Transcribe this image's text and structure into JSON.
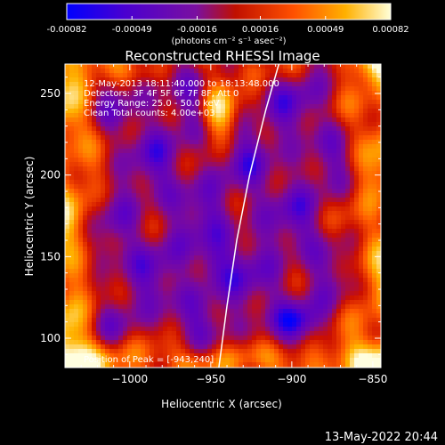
{
  "colorbar": {
    "tick_labels": [
      "-0.00082",
      "-0.00049",
      "-0.00016",
      "0.00016",
      "0.00049",
      "0.00082"
    ],
    "tick_values": [
      -0.00082,
      -0.00049,
      -0.00016,
      0.00016,
      0.00049,
      0.00082
    ],
    "range": [
      -0.00082,
      0.00082
    ],
    "unit_label": "(photons cm⁻² s⁻¹ asec⁻²)",
    "colors": [
      "#0000ff",
      "#5a00c8",
      "#7a0aa0",
      "#cc1000",
      "#ff5a00",
      "#ffb400",
      "#ffffe0"
    ]
  },
  "chart_data": {
    "type": "heatmap",
    "title": "Reconstructed RHESSI Image",
    "xlabel": "Heliocentric X (arcsec)",
    "ylabel": "Heliocentric Y (arcsec)",
    "xlim": [
      -1040,
      -845
    ],
    "ylim": [
      82,
      268
    ],
    "x_ticks": [
      -1000,
      -950,
      -900,
      -850
    ],
    "y_ticks": [
      100,
      150,
      200,
      250
    ],
    "x_tick_labels": [
      "−1000",
      "−950",
      "−900",
      "−850"
    ],
    "y_tick_labels": [
      "100",
      "150",
      "200",
      "250"
    ],
    "annotations": [
      "12-May-2013 18:11:40.000 to 18:13:48.000",
      "Detectors: 3F 4F 5F 6F 7F 8F, Att 0",
      "Energy Range: 25.0 - 50.0 keV",
      "Clean    Total counts: 4.00e+03"
    ],
    "peak_label": "Position of Peak = [-943,240]",
    "peak": [
      -943,
      240
    ],
    "limb_curve": [
      [
        -945,
        82
      ],
      [
        -940,
        120
      ],
      [
        -934,
        160
      ],
      [
        -926,
        200
      ],
      [
        -916,
        240
      ],
      [
        -908,
        268
      ]
    ]
  },
  "footer": {
    "timestamp": "13-May-2022 20:44"
  }
}
